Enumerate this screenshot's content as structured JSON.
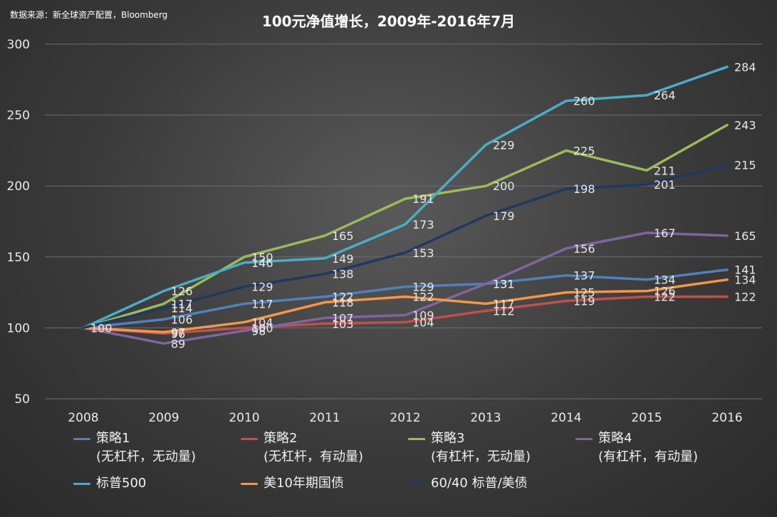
{
  "source": "数据来源：新全球资产配置，Bloomberg",
  "chart_data": {
    "type": "line",
    "title": "100元净值增长，2009年-2016年7月",
    "categories": [
      "2008",
      "2009",
      "2010",
      "2011",
      "2012",
      "2013",
      "2014",
      "2015",
      "2016"
    ],
    "ylim": [
      50,
      300
    ],
    "yticks": [
      50,
      100,
      150,
      200,
      250,
      300
    ],
    "grid": true,
    "legend_position": "bottom",
    "series": [
      {
        "name": "策略1",
        "subtitle": "(无杠杆，无动量)",
        "color": "#4f81bd",
        "values": [
          100,
          106,
          117,
          122,
          129,
          131,
          137,
          134,
          141
        ]
      },
      {
        "name": "策略2",
        "subtitle": "(无杠杆，有动量)",
        "color": "#c0504d",
        "values": [
          100,
          96,
          100,
          103,
          104,
          112,
          119,
          122,
          122
        ]
      },
      {
        "name": "策略3",
        "subtitle": "(有杠杆，无动量)",
        "color": "#9bbb59",
        "values": [
          100,
          117,
          150,
          165,
          191,
          200,
          225,
          211,
          243
        ]
      },
      {
        "name": "策略4",
        "subtitle": "(有杠杆，有动量)",
        "color": "#8064a2",
        "values": [
          100,
          89,
          98,
          107,
          109,
          131,
          156,
          167,
          165
        ]
      },
      {
        "name": "标普500",
        "subtitle": "",
        "color": "#4bacc6",
        "values": [
          100,
          126,
          146,
          149,
          173,
          229,
          260,
          264,
          284
        ]
      },
      {
        "name": "美10年期国债",
        "subtitle": "",
        "color": "#f79646",
        "values": [
          100,
          97,
          104,
          118,
          122,
          117,
          125,
          126,
          134
        ]
      },
      {
        "name": "60/40 标普/美债",
        "subtitle": "",
        "color": "#1f3864",
        "values": [
          100,
          114,
          129,
          138,
          153,
          179,
          198,
          201,
          215
        ]
      }
    ]
  }
}
